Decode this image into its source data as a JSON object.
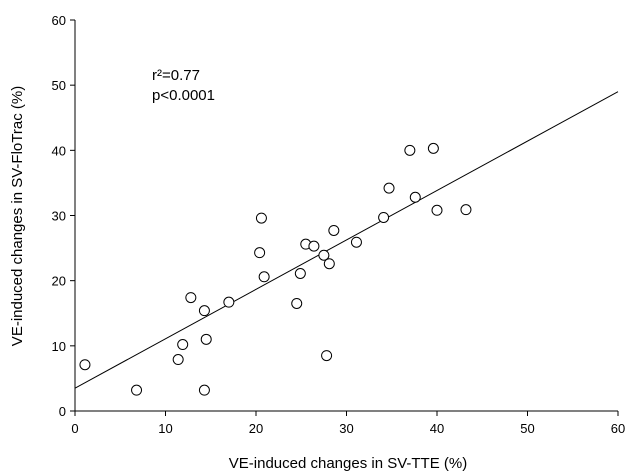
{
  "chart_data": {
    "type": "scatter",
    "xlabel": "VE-induced changes in SV-TTE (%)",
    "ylabel": "VE-induced changes in SV-FloTrac (%)",
    "xlim": [
      0,
      60
    ],
    "ylim": [
      0,
      60
    ],
    "x_ticks": [
      0,
      10,
      20,
      30,
      40,
      50,
      60
    ],
    "y_ticks": [
      0,
      10,
      20,
      30,
      40,
      50,
      60
    ],
    "grid": false,
    "annotations": [
      "r²=0.77",
      "p<0.0001"
    ],
    "regression_line": {
      "x": [
        0,
        60
      ],
      "y": [
        3.5,
        49
      ]
    },
    "points": [
      {
        "x": 1.1,
        "y": 7.1
      },
      {
        "x": 6.8,
        "y": 3.2
      },
      {
        "x": 11.4,
        "y": 7.9
      },
      {
        "x": 11.9,
        "y": 10.2
      },
      {
        "x": 12.8,
        "y": 17.4
      },
      {
        "x": 14.3,
        "y": 3.2
      },
      {
        "x": 14.3,
        "y": 15.4
      },
      {
        "x": 14.5,
        "y": 11.0
      },
      {
        "x": 17.0,
        "y": 16.7
      },
      {
        "x": 20.4,
        "y": 24.3
      },
      {
        "x": 20.6,
        "y": 29.6
      },
      {
        "x": 20.9,
        "y": 20.6
      },
      {
        "x": 24.5,
        "y": 16.5
      },
      {
        "x": 24.9,
        "y": 21.1
      },
      {
        "x": 25.5,
        "y": 25.6
      },
      {
        "x": 26.4,
        "y": 25.3
      },
      {
        "x": 27.5,
        "y": 23.9
      },
      {
        "x": 27.8,
        "y": 8.5
      },
      {
        "x": 28.1,
        "y": 22.6
      },
      {
        "x": 28.6,
        "y": 27.7
      },
      {
        "x": 31.1,
        "y": 25.9
      },
      {
        "x": 34.1,
        "y": 29.7
      },
      {
        "x": 34.7,
        "y": 34.2
      },
      {
        "x": 37.0,
        "y": 40.0
      },
      {
        "x": 37.6,
        "y": 32.8
      },
      {
        "x": 39.6,
        "y": 40.3
      },
      {
        "x": 40.0,
        "y": 30.8
      },
      {
        "x": 43.2,
        "y": 30.9
      }
    ]
  }
}
